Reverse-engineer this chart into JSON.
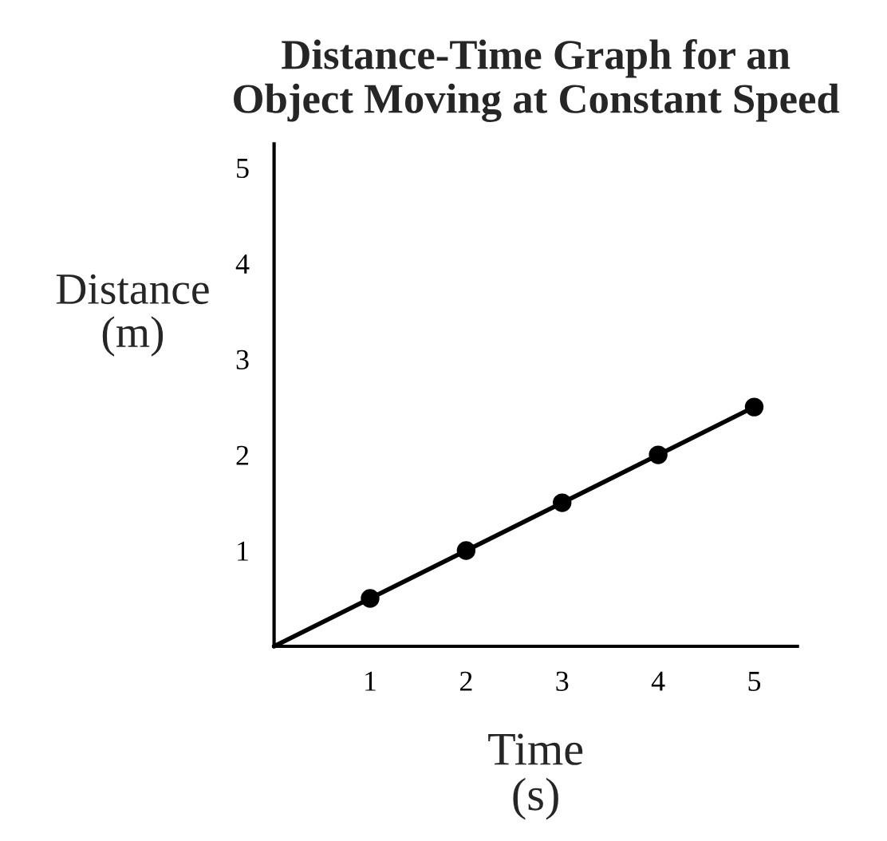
{
  "chart_data": {
    "type": "line",
    "title": "Distance-Time Graph for an\nObject Moving at Constant Speed",
    "xlabel": "Time\n(s)",
    "ylabel": "Distance\n(m)",
    "series": [
      {
        "color": "#000000",
        "x": [
          0,
          5
        ],
        "values": [
          0,
          2.5
        ],
        "marker": "none"
      },
      {
        "type": "scatter",
        "color": "#000000",
        "x": [
          1,
          2,
          3,
          4,
          5
        ],
        "values": [
          0.5,
          1,
          1.5,
          2,
          2.5
        ],
        "marker": "circle"
      }
    ],
    "xlim": [
      0,
      5.45
    ],
    "ylim": [
      0,
      5.25
    ],
    "xticks": [
      1,
      2,
      3,
      4,
      5
    ],
    "yticks": [
      1,
      2,
      3,
      4,
      5
    ],
    "grid": false,
    "legend": false
  }
}
